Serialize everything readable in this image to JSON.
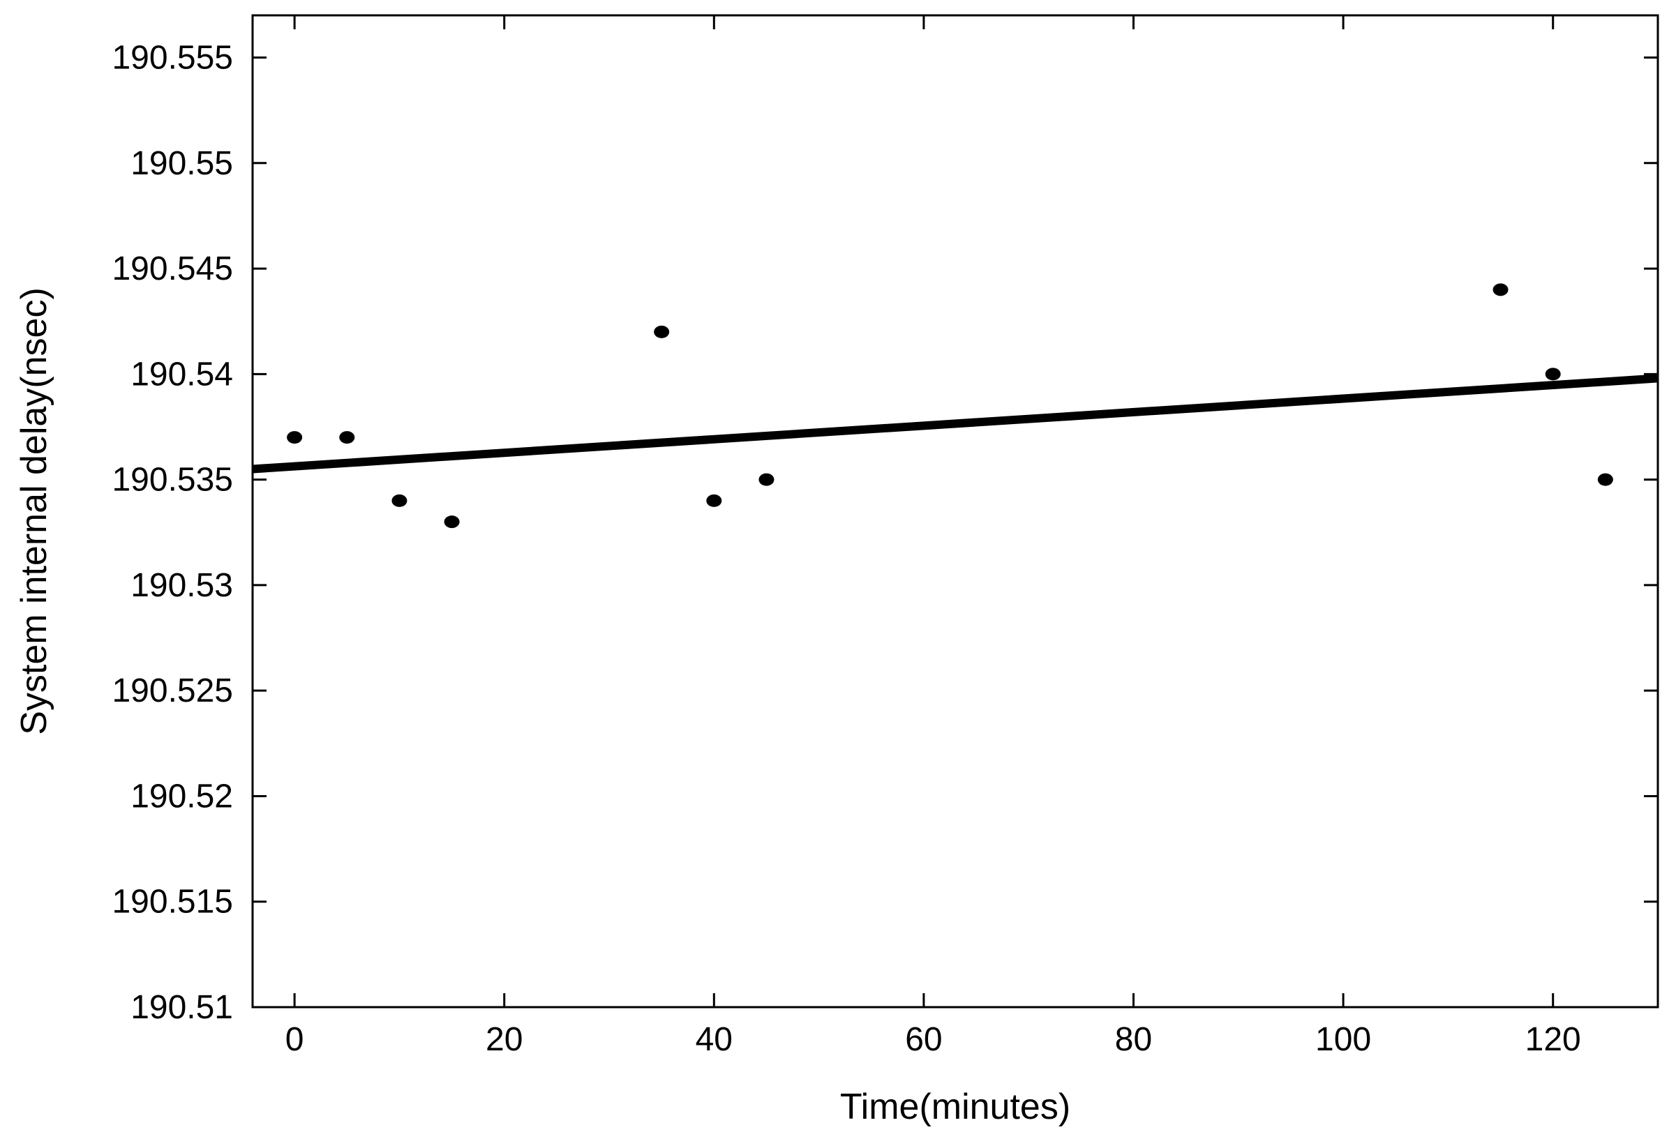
{
  "chart_data": {
    "type": "scatter",
    "title": "",
    "xlabel": "Time(minutes)",
    "ylabel": "System internal delay(nsec)",
    "xlim": [
      -4,
      130
    ],
    "ylim": [
      190.51,
      190.557
    ],
    "xticks": [
      0,
      20,
      40,
      60,
      80,
      100,
      120
    ],
    "yticks": [
      190.51,
      190.515,
      190.52,
      190.525,
      190.53,
      190.535,
      190.54,
      190.545,
      190.55,
      190.555
    ],
    "xtick_labels": [
      "0",
      "20",
      "40",
      "60",
      "80",
      "100",
      "120"
    ],
    "ytick_labels": [
      "190.51",
      "190.515",
      "190.52",
      "190.525",
      "190.53",
      "190.535",
      "190.54",
      "190.545",
      "190.55",
      "190.555"
    ],
    "grid": false,
    "points": {
      "x": [
        0,
        5,
        10,
        15,
        35,
        40,
        45,
        115,
        120,
        125
      ],
      "y": [
        190.537,
        190.537,
        190.534,
        190.533,
        190.542,
        190.534,
        190.535,
        190.544,
        190.54,
        190.535
      ]
    },
    "fit_line": {
      "x": [
        -4,
        130
      ],
      "y": [
        190.5355,
        190.5398
      ]
    },
    "colors": {
      "marker": "#000000",
      "line": "#000000",
      "axes": "#000000"
    }
  }
}
